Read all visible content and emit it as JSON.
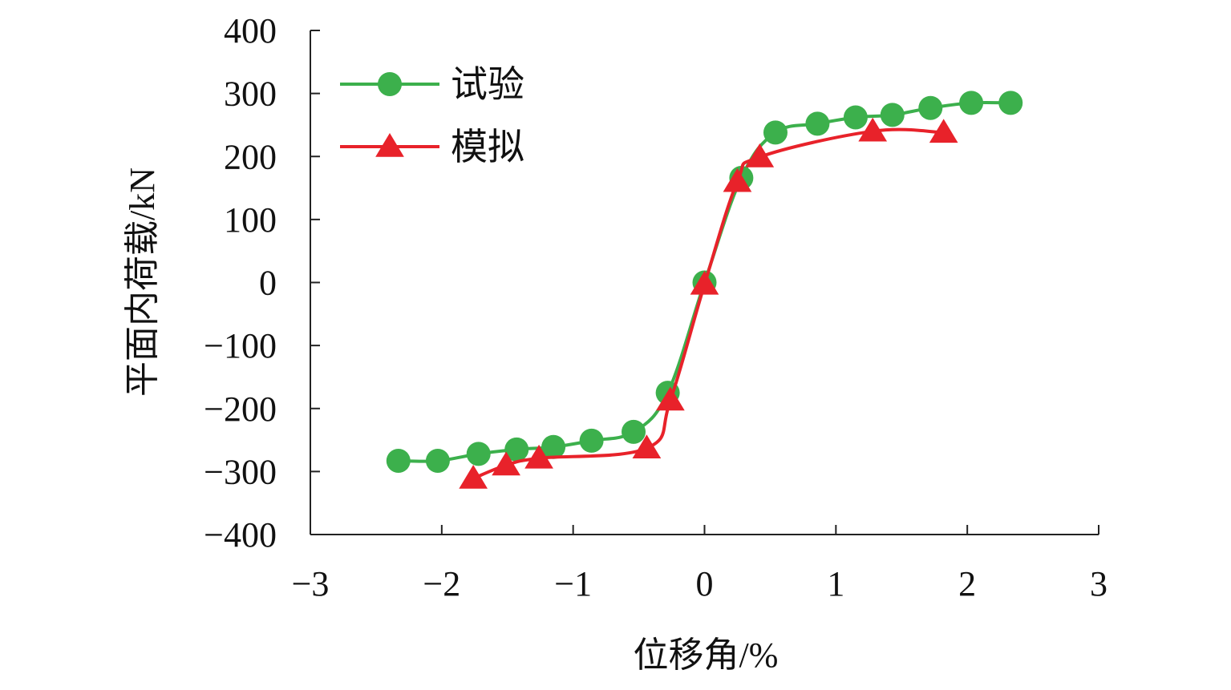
{
  "chart_data": {
    "type": "line",
    "xlabel": "位移角/%",
    "ylabel": "平面内荷载/kN",
    "xlim": [
      -3,
      3
    ],
    "ylim": [
      -400,
      400
    ],
    "x_ticks": [
      -3,
      -2,
      -1,
      0,
      1,
      2,
      3
    ],
    "y_ticks": [
      -400,
      -300,
      -200,
      -100,
      0,
      100,
      200,
      300,
      400
    ],
    "x_tick_labels": [
      "−3",
      "−2",
      "−1",
      "0",
      "1",
      "2",
      "3"
    ],
    "y_tick_labels": [
      "−400",
      "−300",
      "−200",
      "−100",
      "0",
      "100",
      "200",
      "300",
      "400"
    ],
    "grid": false,
    "legend_position": "top-left",
    "series": [
      {
        "name": "试验",
        "color": "#3cb04c",
        "marker": "circle",
        "points": [
          [
            -2.33,
            -283
          ],
          [
            -2.03,
            -283
          ],
          [
            -1.72,
            -272
          ],
          [
            -1.43,
            -265
          ],
          [
            -1.15,
            -261
          ],
          [
            -0.86,
            -251
          ],
          [
            -0.54,
            -237
          ],
          [
            -0.28,
            -175
          ],
          [
            0.0,
            0
          ],
          [
            0.28,
            166
          ],
          [
            0.54,
            238
          ],
          [
            0.86,
            252
          ],
          [
            1.15,
            262
          ],
          [
            1.43,
            266
          ],
          [
            1.72,
            277
          ],
          [
            2.03,
            285
          ],
          [
            2.33,
            285
          ]
        ]
      },
      {
        "name": "模拟",
        "color": "#e8222a",
        "marker": "triangle",
        "points": [
          [
            -1.76,
            -311
          ],
          [
            -1.51,
            -290
          ],
          [
            -1.26,
            -279
          ],
          [
            -0.44,
            -263
          ],
          [
            -0.26,
            -187
          ],
          [
            0.0,
            -3
          ],
          [
            0.25,
            160
          ],
          [
            0.42,
            199
          ],
          [
            1.28,
            240
          ],
          [
            1.82,
            238
          ]
        ]
      }
    ]
  }
}
